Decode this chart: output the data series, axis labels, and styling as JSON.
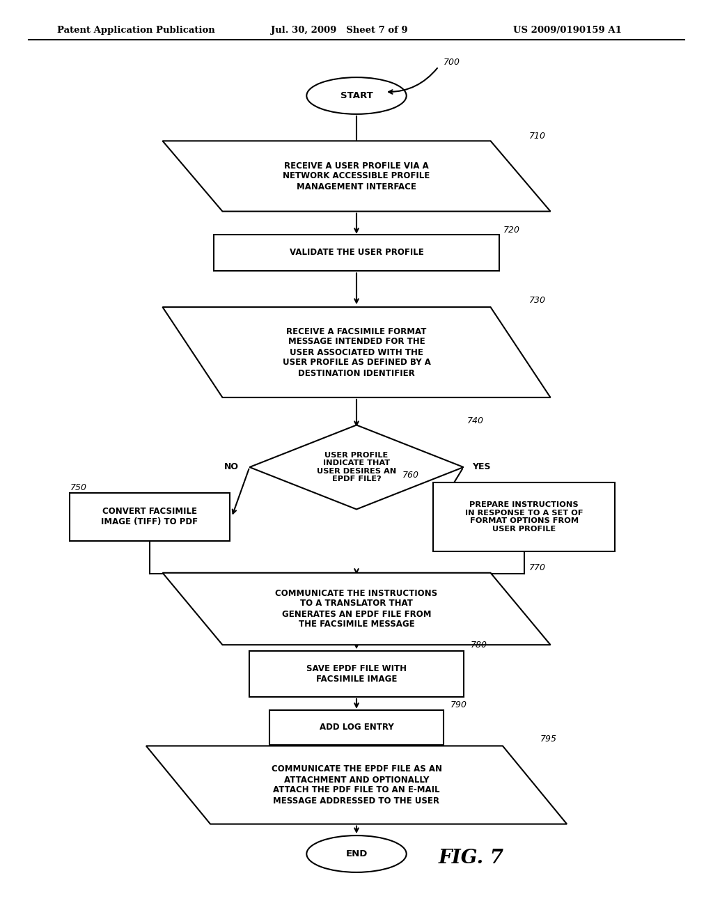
{
  "title_left": "Patent Application Publication",
  "title_mid": "Jul. 30, 2009   Sheet 7 of 9",
  "title_right": "US 2009/0190159 A1",
  "fig_label": "FIG. 7",
  "background": "#ffffff"
}
